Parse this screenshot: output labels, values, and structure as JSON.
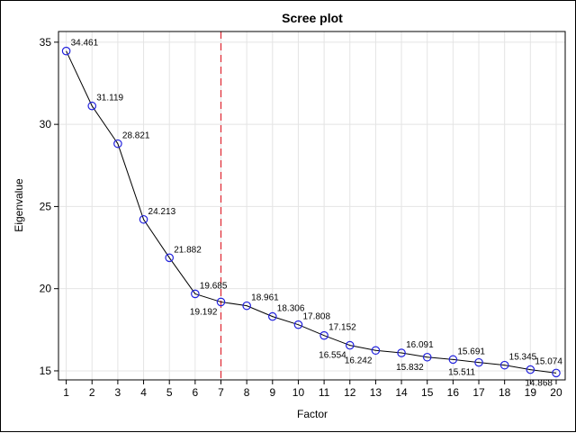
{
  "chart_data": {
    "type": "line",
    "title": "Scree plot",
    "xlabel": "Factor",
    "ylabel": "Eigenvalue",
    "xlim": [
      0.7,
      20.35
    ],
    "ylim": [
      14.45,
      35.65
    ],
    "x_ticks": [
      1,
      2,
      3,
      4,
      5,
      6,
      7,
      8,
      9,
      10,
      11,
      12,
      13,
      14,
      15,
      16,
      17,
      18,
      19,
      20
    ],
    "y_ticks": [
      15,
      20,
      25,
      30,
      35
    ],
    "x_tick_labels": [
      "1",
      "2",
      "3",
      "4",
      "5",
      "6",
      "7",
      "8",
      "9",
      "10",
      "11",
      "12",
      "13",
      "14",
      "15",
      "16",
      "17",
      "18",
      "19",
      "20"
    ],
    "y_tick_labels": [
      "15",
      "20",
      "25",
      "30",
      "35"
    ],
    "grid": true,
    "reference_line": {
      "x": 7,
      "color": "#e0303a",
      "style": "dashed"
    },
    "marker": "circle",
    "colors": {
      "line": "#000000",
      "marker": "#2222dd",
      "grid": "#e4e4e4"
    },
    "series": [
      {
        "x": [
          1,
          2,
          3,
          4,
          5,
          6,
          7,
          8,
          9,
          10,
          11,
          12,
          13,
          14,
          15,
          16,
          17,
          18,
          19,
          20
        ],
        "values": [
          34.461,
          31.119,
          28.821,
          24.213,
          21.882,
          19.685,
          19.192,
          18.961,
          18.306,
          17.808,
          17.152,
          16.554,
          16.242,
          16.091,
          15.832,
          15.691,
          15.511,
          15.345,
          15.074,
          14.868
        ],
        "labels": [
          "34.461",
          "31.119",
          "28.821",
          "24.213",
          "21.882",
          "19.685",
          "19.192",
          "18.961",
          "18.306",
          "17.808",
          "17.152",
          "16.554",
          "16.242",
          "16.091",
          "15.832",
          "15.691",
          "15.511",
          "15.345",
          "15.074",
          "14.868"
        ],
        "label_positions": [
          "above",
          "above",
          "above",
          "above",
          "above",
          "above",
          "below",
          "above",
          "above",
          "above",
          "above",
          "below",
          "below",
          "above",
          "below",
          "above",
          "below",
          "above",
          "above",
          "below"
        ]
      }
    ]
  }
}
